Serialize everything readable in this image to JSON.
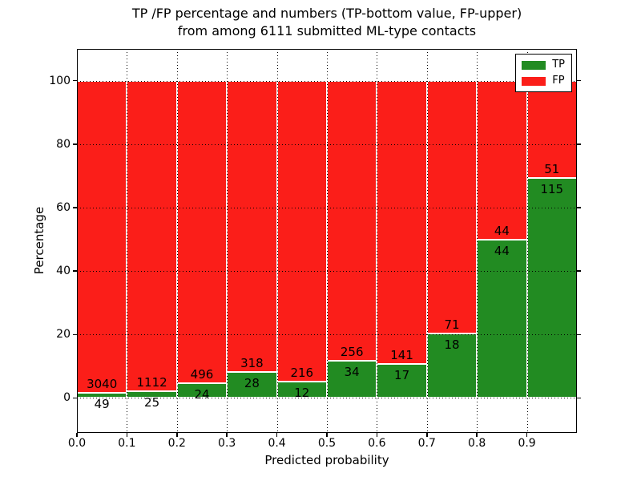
{
  "title": {
    "line1": "TP /FP percentage and numbers (TP-bottom value, FP-upper)",
    "line2": "from among 6111 submitted ML-type contacts"
  },
  "chart_data": {
    "type": "bar",
    "stacked": true,
    "normalized_to_percent": true,
    "title": "TP /FP percentage and numbers (TP-bottom value, FP-upper)\nfrom among 6111 submitted ML-type contacts",
    "xlabel": "Predicted probability",
    "ylabel": "Percentage",
    "xlim": [
      0.0,
      1.0
    ],
    "ylim": [
      -11,
      110
    ],
    "grid": true,
    "bin_width": 0.1,
    "bin_starts": [
      0.0,
      0.1,
      0.2,
      0.3,
      0.4,
      0.5,
      0.6,
      0.7,
      0.8,
      0.9
    ],
    "x_ticks": [
      0.0,
      0.1,
      0.2,
      0.3,
      0.4,
      0.5,
      0.6,
      0.7,
      0.8,
      0.9
    ],
    "x_tick_labels": [
      "0.0",
      "0.1",
      "0.2",
      "0.3",
      "0.4",
      "0.5",
      "0.6",
      "0.7",
      "0.8",
      "0.9"
    ],
    "y_ticks": [
      0,
      20,
      40,
      60,
      80,
      100
    ],
    "series": [
      {
        "name": "TP",
        "color": "#228b22",
        "counts": [
          49,
          25,
          24,
          28,
          12,
          34,
          17,
          18,
          44,
          115
        ]
      },
      {
        "name": "FP",
        "color": "#fb1e19",
        "counts": [
          3040,
          1112,
          496,
          318,
          216,
          256,
          141,
          71,
          44,
          51
        ]
      }
    ],
    "total_contacts": 6111,
    "legend_position": "upper right"
  },
  "legend": {
    "items": [
      {
        "label": "TP",
        "color": "#228b22"
      },
      {
        "label": "FP",
        "color": "#fb1e19"
      }
    ]
  },
  "colors": {
    "tp_green": "#228b22",
    "fp_red": "#fb1e19",
    "axis": "#000000",
    "background": "#ffffff"
  }
}
